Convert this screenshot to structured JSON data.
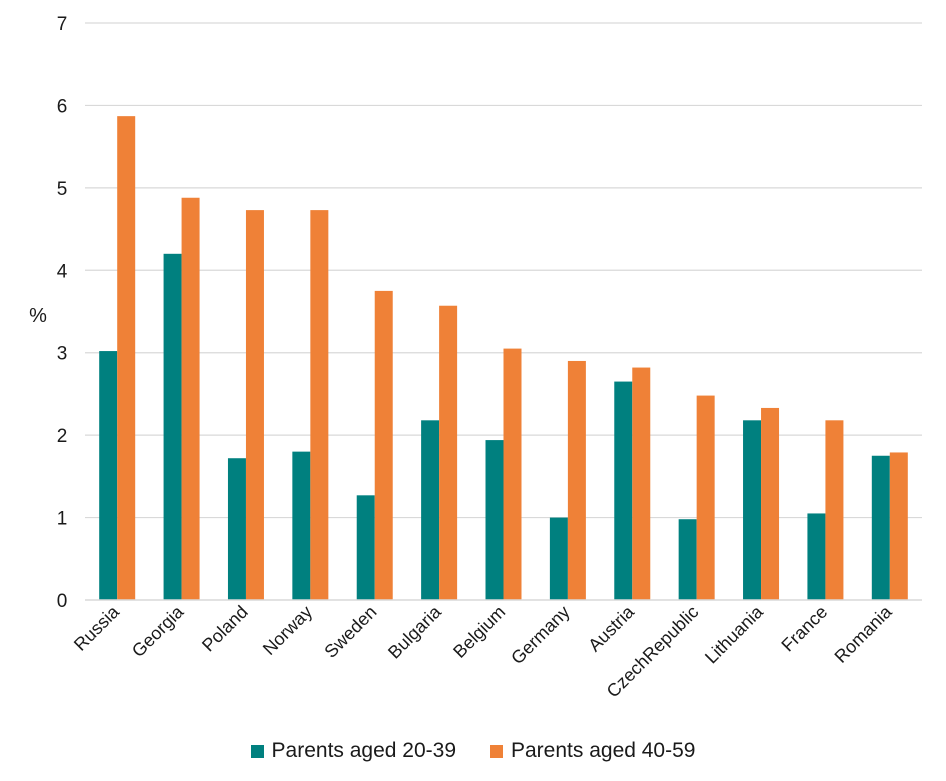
{
  "chart_data": {
    "type": "bar",
    "title": "",
    "xlabel": "",
    "ylabel": "%",
    "ylim": [
      0,
      7
    ],
    "yticks": [
      0,
      1,
      2,
      3,
      4,
      5,
      6,
      7
    ],
    "grid": true,
    "legend_position": "bottom",
    "categories": [
      "Russia",
      "Georgia",
      "Poland",
      "Norway",
      "Sweden",
      "Bulgaria",
      "Belgium",
      "Germany",
      "Austria",
      "CzechRepublic",
      "Lithuania",
      "France",
      "Romania"
    ],
    "series": [
      {
        "name": "Parents aged 20-39",
        "color": "#00807f",
        "values": [
          3.02,
          4.2,
          1.72,
          1.8,
          1.27,
          2.18,
          1.94,
          1.0,
          2.65,
          0.98,
          2.18,
          1.05,
          1.75
        ]
      },
      {
        "name": "Parents aged 40-59",
        "color": "#ef8137",
        "values": [
          5.87,
          4.88,
          4.73,
          4.73,
          3.75,
          3.57,
          3.05,
          2.9,
          2.82,
          2.48,
          2.33,
          2.18,
          1.79
        ]
      }
    ]
  }
}
